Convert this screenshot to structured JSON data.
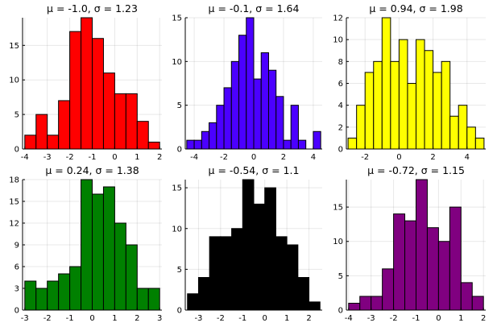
{
  "chart_data": [
    {
      "type": "bar",
      "title": "μ = -1.0, σ = 1.23",
      "color": "#ff0000",
      "bin_width": 0.5,
      "bin_edges_start": -4.0,
      "values": [
        2,
        5,
        2,
        7,
        17,
        19,
        16,
        11,
        8,
        8,
        4,
        1
      ],
      "xlim": [
        -4.1,
        2.1
      ],
      "ylim": [
        0,
        19
      ],
      "xticks": [
        -4,
        -3,
        -2,
        -1,
        0,
        1,
        2
      ],
      "xtick_labels": [
        "-4",
        "-3",
        "-2",
        "-1",
        "0",
        "1",
        "2"
      ],
      "yticks": [
        0,
        5,
        10,
        15
      ],
      "ytick_labels": [
        "0",
        "5",
        "10",
        "15"
      ],
      "grid": true
    },
    {
      "type": "bar",
      "title": "μ = -0.1, σ = 1.64",
      "color": "#4b00ff",
      "bin_width": 0.5,
      "bin_edges_start": -4.5,
      "values": [
        1,
        1,
        2,
        3,
        5,
        7,
        10,
        13,
        15,
        8,
        11,
        9,
        6,
        1,
        5,
        1,
        0,
        2
      ],
      "xlim": [
        -4.6,
        4.6
      ],
      "ylim": [
        0,
        15
      ],
      "xticks": [
        -4,
        -2,
        0,
        2,
        4
      ],
      "xtick_labels": [
        "-4",
        "-2",
        "0",
        "2",
        "4"
      ],
      "yticks": [
        0,
        5,
        10,
        15
      ],
      "ytick_labels": [
        "0",
        "5",
        "10",
        "15"
      ],
      "grid": true
    },
    {
      "type": "bar",
      "title": "μ = 0.94, σ = 1.98",
      "color": "#ffff00",
      "bin_width": 0.5,
      "bin_edges_start": -3.0,
      "values": [
        1,
        4,
        7,
        8,
        12,
        8,
        10,
        6,
        10,
        9,
        7,
        8,
        3,
        4,
        2,
        1
      ],
      "xlim": [
        -3.1,
        5.1
      ],
      "ylim": [
        0,
        12
      ],
      "xticks": [
        -2,
        0,
        2,
        4
      ],
      "xtick_labels": [
        "-2",
        "0",
        "2",
        "4"
      ],
      "yticks": [
        0,
        2,
        4,
        6,
        8,
        10,
        12
      ],
      "ytick_labels": [
        "0",
        "2",
        "4",
        "6",
        "8",
        "10",
        "12"
      ],
      "grid": true
    },
    {
      "type": "bar",
      "title": "μ = 0.24, σ = 1.38",
      "color": "#008000",
      "bin_width": 0.5,
      "bin_edges_start": -3.0,
      "values": [
        4,
        3,
        4,
        5,
        6,
        18,
        16,
        17,
        12,
        9,
        3,
        3
      ],
      "xlim": [
        -3.1,
        3.1
      ],
      "ylim": [
        0,
        18
      ],
      "xticks": [
        -3,
        -2,
        -1,
        0,
        1,
        2,
        3
      ],
      "xtick_labels": [
        "-3",
        "-2",
        "-1",
        "0",
        "1",
        "2",
        "3"
      ],
      "yticks": [
        0,
        3,
        6,
        9,
        12,
        15,
        18
      ],
      "ytick_labels": [
        "0",
        "3",
        "6",
        "9",
        "12",
        "15",
        "18"
      ],
      "grid": true
    },
    {
      "type": "bar",
      "title": "μ = -0.54, σ = 1.1",
      "color": "#000000",
      "bin_width": 0.5,
      "bin_edges_start": -3.5,
      "values": [
        2,
        4,
        9,
        9,
        10,
        16,
        13,
        15,
        9,
        8,
        4,
        1
      ],
      "xlim": [
        -3.6,
        2.6
      ],
      "ylim": [
        0,
        16
      ],
      "xticks": [
        -3,
        -2,
        -1,
        0,
        1,
        2
      ],
      "xtick_labels": [
        "-3",
        "-2",
        "-1",
        "0",
        "1",
        "2"
      ],
      "yticks": [
        0,
        5,
        10,
        15
      ],
      "ytick_labels": [
        "0",
        "5",
        "10",
        "15"
      ],
      "grid": true
    },
    {
      "type": "bar",
      "title": "μ = -0.72, σ = 1.15",
      "color": "#800080",
      "bin_width": 0.5,
      "bin_edges_start": -4.0,
      "values": [
        1,
        2,
        2,
        6,
        14,
        13,
        19,
        12,
        10,
        15,
        4,
        2
      ],
      "xlim": [
        -4.1,
        2.1
      ],
      "ylim": [
        0,
        19
      ],
      "xticks": [
        -4,
        -3,
        -2,
        -1,
        0,
        1,
        2
      ],
      "xtick_labels": [
        "-4",
        "-3",
        "-2",
        "-1",
        "0",
        "1",
        "2"
      ],
      "yticks": [
        0,
        5,
        10,
        15
      ],
      "ytick_labels": [
        "0",
        "5",
        "10",
        "15"
      ],
      "grid": true
    }
  ]
}
